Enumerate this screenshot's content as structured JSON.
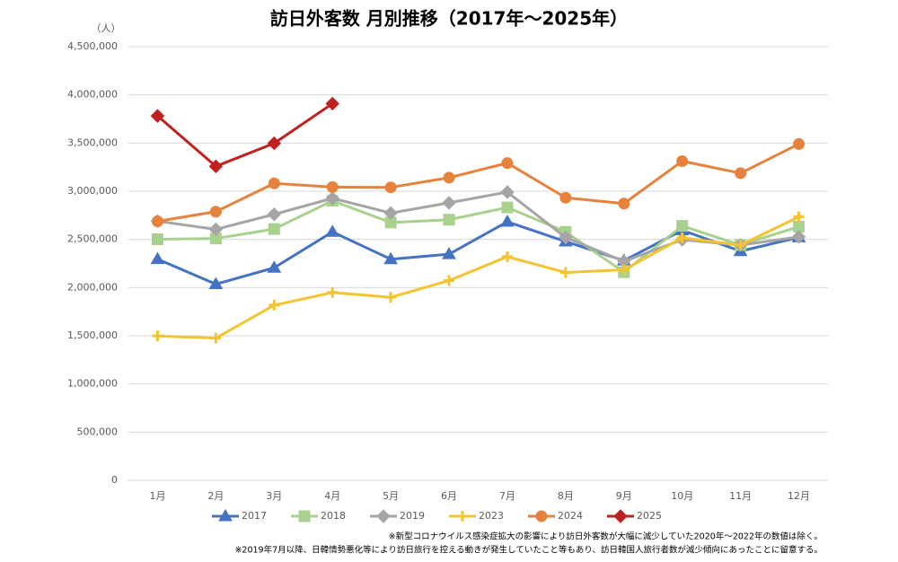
{
  "chart_data": {
    "type": "line",
    "title": "訪日外客数 月別推移（2017年～2025年）",
    "y_unit": "（人）",
    "categories": [
      "1月",
      "2月",
      "3月",
      "4月",
      "5月",
      "6月",
      "7月",
      "8月",
      "9月",
      "10月",
      "11月",
      "12月"
    ],
    "series": [
      {
        "name": "2017",
        "color": "#4472c4",
        "marker": "triangle",
        "values": [
          2295700,
          2035800,
          2205700,
          2578000,
          2294700,
          2346500,
          2682900,
          2477900,
          2280000,
          2595000,
          2378000,
          2521000
        ]
      },
      {
        "name": "2018",
        "color": "#a9d18e",
        "marker": "square",
        "values": [
          2501400,
          2509300,
          2607900,
          2900700,
          2675100,
          2704600,
          2832000,
          2578000,
          2159600,
          2640600,
          2441300,
          2632000
        ]
      },
      {
        "name": "2019",
        "color": "#a5a5a5",
        "marker": "diamond",
        "values": [
          2689300,
          2604300,
          2760100,
          2926700,
          2773100,
          2880000,
          2991200,
          2520100,
          2272900,
          2496600,
          2441300,
          2526400
        ]
      },
      {
        "name": "2023",
        "color": "#f4c430",
        "marker": "plus",
        "values": [
          1497300,
          1475500,
          1817500,
          1949100,
          1898900,
          2073300,
          2320600,
          2156900,
          2184300,
          2516500,
          2440900,
          2734000
        ]
      },
      {
        "name": "2024",
        "color": "#e6823c",
        "marker": "circle",
        "values": [
          2688100,
          2788000,
          3081800,
          3042900,
          3040100,
          3140600,
          3292600,
          2932600,
          2872200,
          3312200,
          3187000,
          3489800
        ]
      },
      {
        "name": "2025",
        "color": "#c0201f",
        "marker": "diamond",
        "values": [
          3781600,
          3258100,
          3497600,
          3908900,
          null,
          null,
          null,
          null,
          null,
          null,
          null,
          null
        ]
      }
    ],
    "ylim": [
      0,
      4500000
    ],
    "yticks": [
      0,
      {
        "value": 500000,
        "label": "500,000"
      },
      {
        "value": 1000000,
        "label": "1,000,000"
      },
      {
        "value": 1500000,
        "label": "1,500,000"
      },
      {
        "value": 2000000,
        "label": "2,000,000"
      },
      {
        "value": 2500000,
        "label": "2,500,000"
      },
      {
        "value": 3000000,
        "label": "3,000,000"
      },
      {
        "value": 3500000,
        "label": "3,500,000"
      },
      {
        "value": 4000000,
        "label": "4,000,000"
      },
      {
        "value": 4500000,
        "label": "4,500,000"
      }
    ],
    "grid": true,
    "legend": "bottom",
    "notes": [
      "※新型コロナウイルス感染症拡大の影響により訪日外客数が大幅に減少していた2020年～2022年の数値は除く。",
      "※2019年7月以降、日韓情勢悪化等により訪日旅行を控える動きが発生していたこと等もあり、訪日韓国人旅行者数が減少傾向にあったことに留意する。"
    ]
  }
}
